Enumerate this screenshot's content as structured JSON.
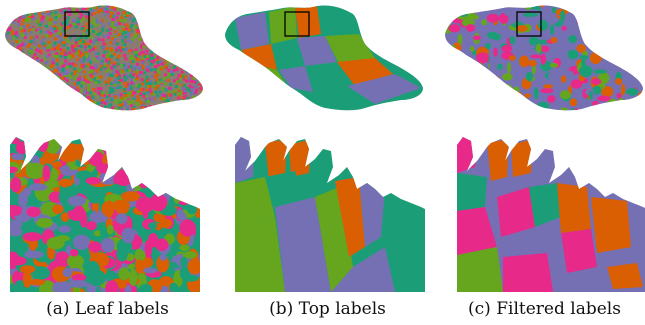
{
  "figure": {
    "captions": [
      {
        "label": "(a)",
        "text": "Leaf labels"
      },
      {
        "label": "(b)",
        "text": "Top labels"
      },
      {
        "label": "(c)",
        "text": "Filtered labels"
      }
    ]
  },
  "colors": {
    "teal": "#1b9e77",
    "orange": "#d95f02",
    "purple": "#7570b3",
    "magenta": "#e7298a",
    "green": "#66a61e",
    "white": "#ffffff",
    "frame": "#000000"
  }
}
